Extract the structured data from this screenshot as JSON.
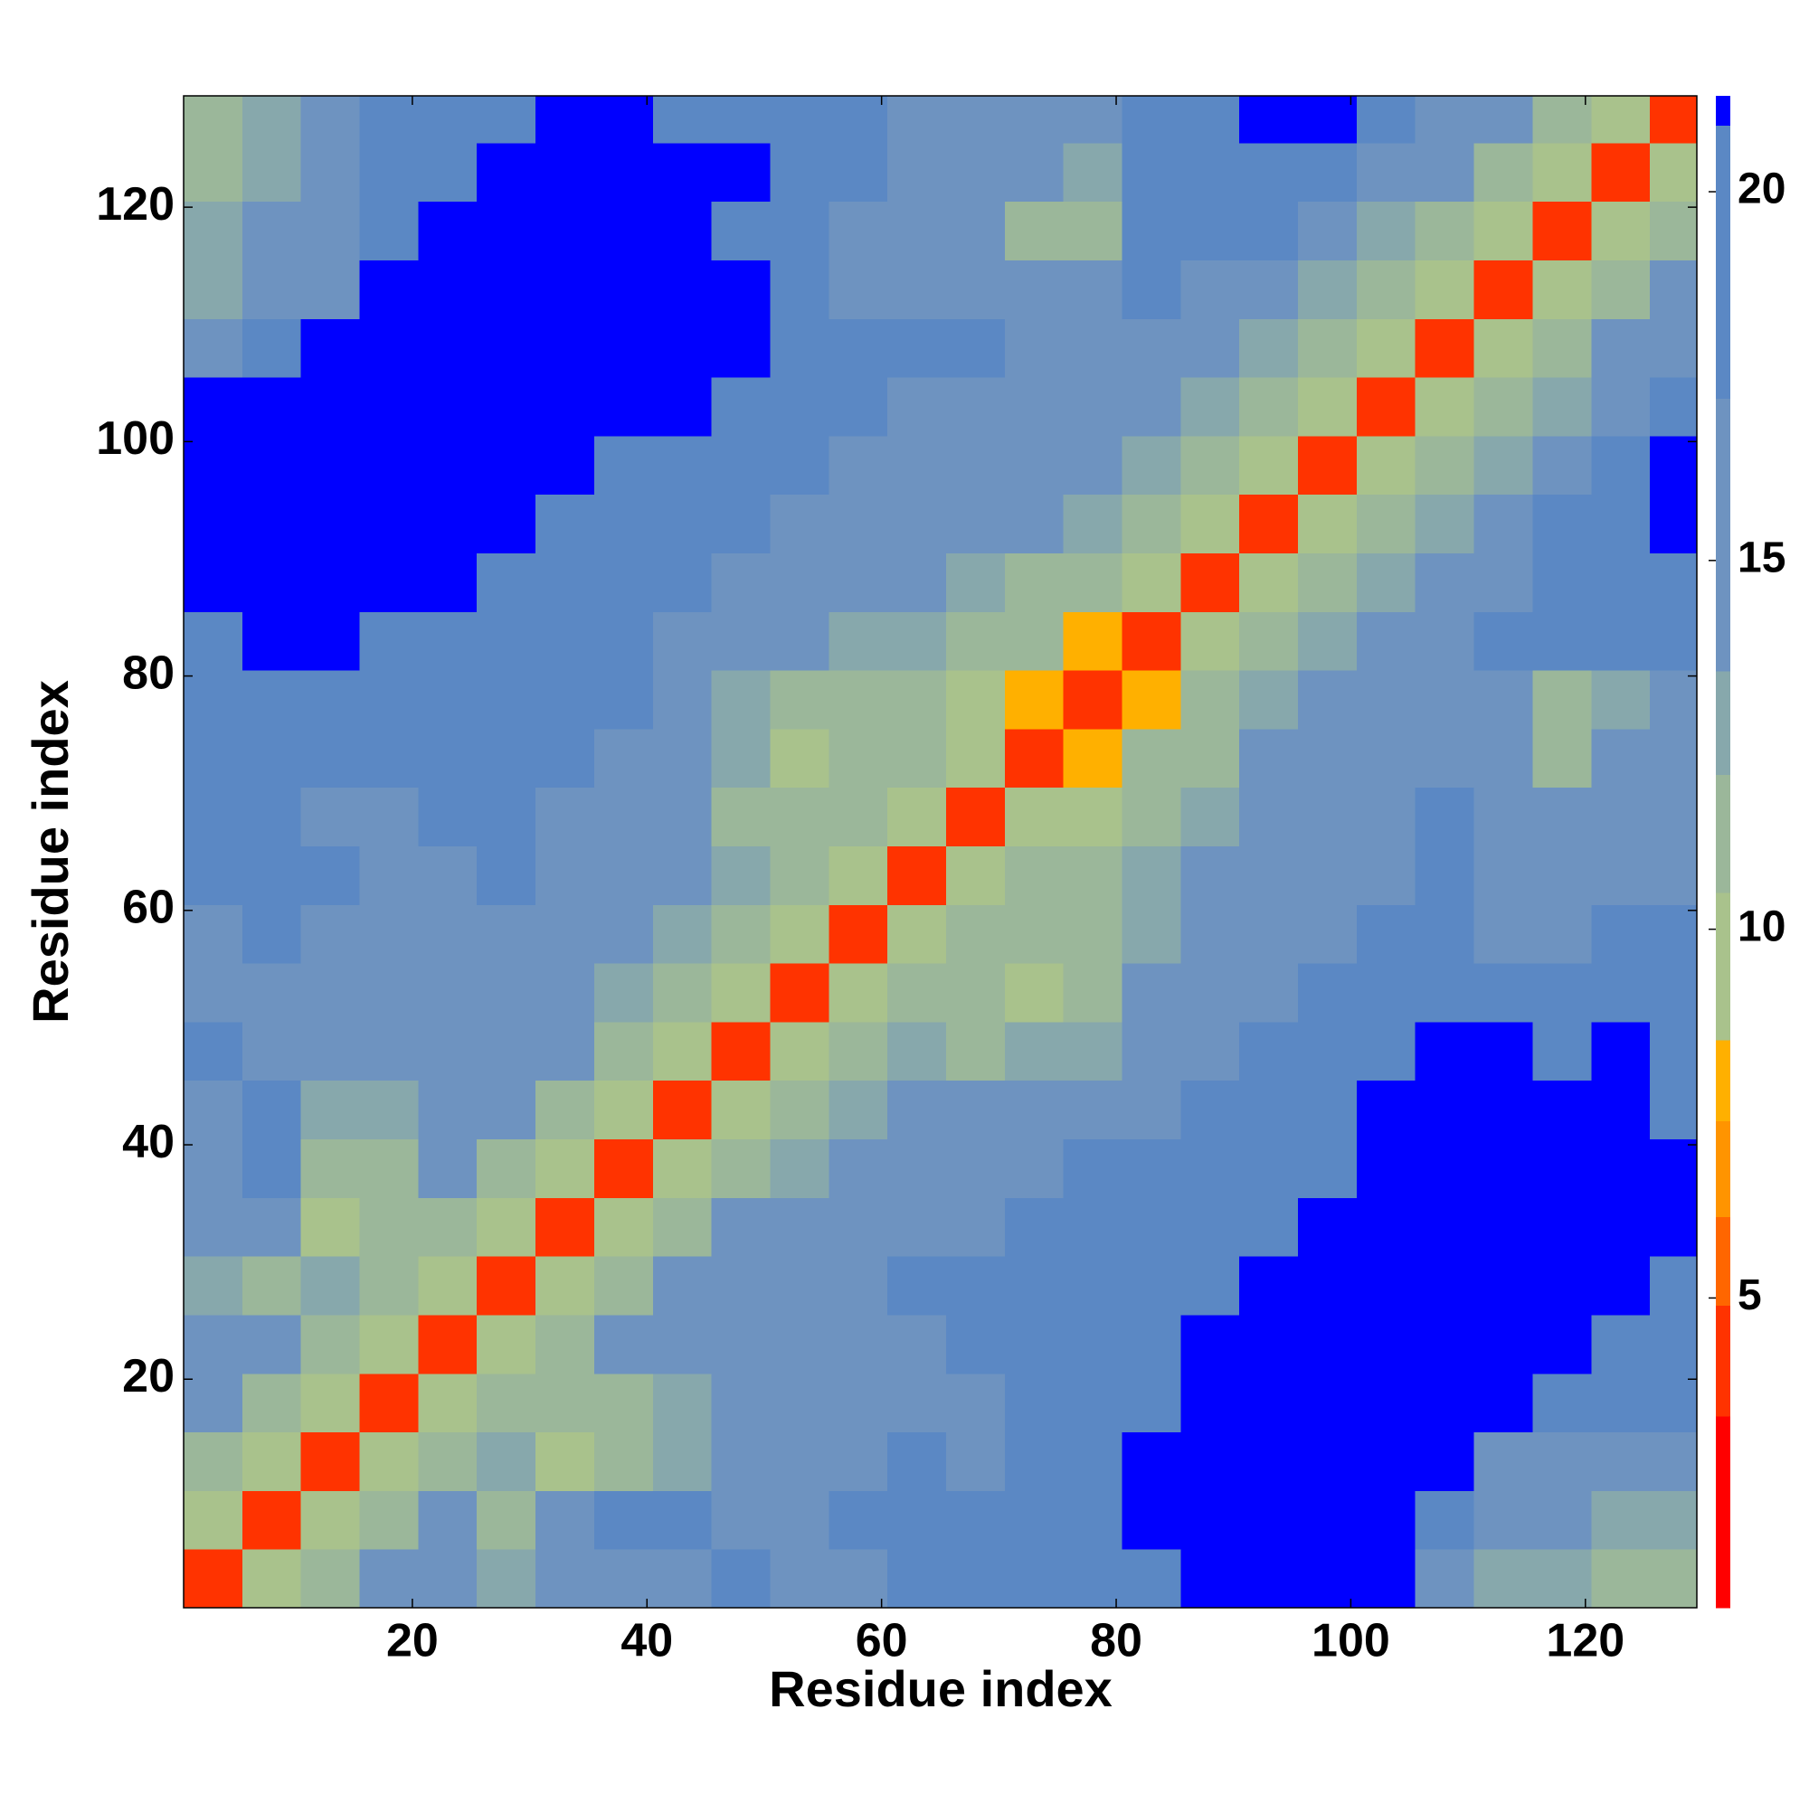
{
  "chart_data": {
    "type": "heatmap",
    "xlabel": "Residue index",
    "ylabel": "Residue index",
    "x_edges": [
      0.5,
      5.5,
      10.5,
      15.5,
      20.5,
      25.5,
      30.5,
      35.5,
      40.5,
      45.5,
      50.5,
      55.5,
      60.5,
      65.5,
      70.5,
      75.5,
      80.5,
      85.5,
      90.5,
      95.5,
      100.5,
      105.5,
      110.5,
      115.5,
      120.5,
      125.5,
      129.5
    ],
    "y_edges": [
      0.5,
      5.5,
      10.5,
      15.5,
      20.5,
      25.5,
      30.5,
      35.5,
      40.5,
      45.5,
      50.5,
      55.5,
      60.5,
      65.5,
      70.5,
      75.5,
      80.5,
      85.5,
      90.5,
      95.5,
      100.5,
      105.5,
      110.5,
      115.5,
      120.5,
      125.5,
      129.5
    ],
    "xlim": [
      0.5,
      129.5
    ],
    "ylim": [
      0.5,
      129.5
    ],
    "xticks": [
      20,
      40,
      60,
      80,
      100,
      120
    ],
    "yticks": [
      20,
      40,
      60,
      80,
      100,
      120
    ],
    "z": [
      [
        4,
        9,
        12,
        14,
        16,
        13,
        15,
        16,
        17,
        18,
        16,
        17,
        19,
        18,
        19,
        20,
        20,
        21,
        21,
        21,
        21,
        15,
        13,
        13,
        12,
        12
      ],
      [
        9,
        4,
        9,
        12,
        14,
        12,
        16,
        18,
        18,
        17,
        16,
        18,
        19,
        18,
        19,
        20,
        21,
        21,
        21,
        21,
        21,
        19,
        15,
        14,
        13,
        13
      ],
      [
        12,
        9,
        4,
        9,
        12,
        13,
        10,
        12,
        13,
        15,
        14,
        17,
        18,
        17,
        19,
        20,
        21,
        21,
        21,
        21,
        21,
        21,
        17,
        16,
        15,
        16
      ],
      [
        14,
        12,
        9,
        4,
        9,
        12,
        11,
        12,
        13,
        14,
        14,
        15,
        17,
        17,
        18,
        19,
        20,
        21,
        21,
        21,
        21,
        21,
        21,
        20,
        19,
        18
      ],
      [
        16,
        14,
        12,
        9,
        4,
        9,
        12,
        14,
        16,
        15,
        14,
        16,
        17,
        18,
        19,
        19,
        20,
        21,
        21,
        21,
        21,
        21,
        21,
        21,
        20,
        19
      ],
      [
        13,
        12,
        13,
        12,
        9,
        4,
        9,
        12,
        14,
        16,
        15,
        17,
        18,
        18,
        19,
        19,
        20,
        20,
        21,
        21,
        21,
        21,
        21,
        21,
        21,
        20
      ],
      [
        15,
        16,
        10,
        11,
        12,
        9,
        4,
        9,
        12,
        14,
        16,
        17,
        17,
        17,
        18,
        19,
        19,
        20,
        20,
        21,
        21,
        21,
        21,
        21,
        21,
        21
      ],
      [
        16,
        18,
        12,
        12,
        14,
        12,
        9,
        4,
        9,
        12,
        13,
        15,
        15,
        16,
        17,
        18,
        18,
        19,
        20,
        20,
        21,
        21,
        21,
        21,
        21,
        21
      ],
      [
        17,
        18,
        13,
        13,
        16,
        14,
        12,
        9,
        4,
        9,
        11,
        13,
        14,
        14,
        15,
        16,
        17,
        18,
        19,
        20,
        21,
        21,
        21,
        21,
        21,
        20
      ],
      [
        18,
        17,
        15,
        14,
        15,
        16,
        14,
        12,
        9,
        4,
        9,
        11,
        13,
        12,
        13,
        13,
        15,
        17,
        18,
        19,
        20,
        21,
        21,
        20,
        21,
        20
      ],
      [
        16,
        16,
        14,
        14,
        14,
        15,
        16,
        13,
        11,
        9,
        4,
        9,
        11,
        12,
        10,
        12,
        14,
        16,
        17,
        18,
        19,
        20,
        20,
        19,
        20,
        19
      ],
      [
        17,
        18,
        17,
        15,
        16,
        17,
        17,
        15,
        13,
        11,
        9,
        4,
        9,
        11,
        12,
        12,
        13,
        14,
        15,
        17,
        18,
        19,
        17,
        17,
        18,
        18
      ],
      [
        19,
        19,
        18,
        17,
        17,
        18,
        17,
        15,
        14,
        13,
        11,
        9,
        4,
        9,
        11,
        12,
        13,
        14,
        15,
        16,
        17,
        18,
        16,
        15,
        16,
        17
      ],
      [
        18,
        18,
        17,
        17,
        18,
        18,
        17,
        16,
        14,
        12,
        12,
        11,
        9,
        4,
        9,
        10,
        12,
        13,
        14,
        15,
        17,
        18,
        16,
        15,
        16,
        17
      ],
      [
        19,
        19,
        19,
        18,
        19,
        19,
        18,
        17,
        15,
        13,
        10,
        12,
        11,
        9,
        4,
        8,
        11,
        12,
        14,
        15,
        16,
        17,
        15,
        12,
        14,
        15
      ],
      [
        20,
        20,
        20,
        19,
        19,
        19,
        19,
        18,
        16,
        13,
        12,
        12,
        12,
        10,
        8,
        4,
        8,
        11,
        13,
        15,
        16,
        17,
        14,
        11,
        13,
        14
      ],
      [
        20,
        21,
        21,
        20,
        20,
        20,
        19,
        18,
        17,
        15,
        14,
        13,
        13,
        12,
        11,
        8,
        4,
        9,
        11,
        13,
        15,
        17,
        18,
        18,
        19,
        19
      ],
      [
        21,
        21,
        21,
        21,
        21,
        20,
        20,
        19,
        18,
        17,
        16,
        14,
        14,
        13,
        12,
        11,
        9,
        4,
        9,
        11,
        13,
        15,
        17,
        19,
        20,
        20
      ],
      [
        21,
        21,
        21,
        21,
        21,
        21,
        20,
        20,
        19,
        18,
        17,
        15,
        15,
        14,
        14,
        13,
        11,
        9,
        4,
        9,
        11,
        13,
        15,
        18,
        20,
        21
      ],
      [
        21,
        21,
        21,
        21,
        21,
        21,
        21,
        20,
        20,
        19,
        18,
        17,
        16,
        15,
        15,
        15,
        13,
        11,
        9,
        4,
        9,
        11,
        13,
        16,
        19,
        21
      ],
      [
        21,
        21,
        21,
        21,
        21,
        21,
        21,
        21,
        21,
        20,
        19,
        18,
        17,
        17,
        16,
        16,
        15,
        13,
        11,
        9,
        4,
        9,
        11,
        13,
        17,
        20
      ],
      [
        15,
        19,
        21,
        21,
        21,
        21,
        21,
        21,
        21,
        21,
        20,
        19,
        18,
        18,
        17,
        17,
        17,
        15,
        13,
        11,
        9,
        4,
        9,
        11,
        14,
        17
      ],
      [
        13,
        15,
        17,
        21,
        21,
        21,
        21,
        21,
        21,
        21,
        20,
        17,
        16,
        16,
        15,
        14,
        18,
        17,
        15,
        13,
        11,
        9,
        4,
        9,
        11,
        14
      ],
      [
        13,
        14,
        16,
        20,
        21,
        21,
        21,
        21,
        21,
        20,
        19,
        17,
        15,
        15,
        12,
        11,
        18,
        19,
        18,
        16,
        13,
        11,
        9,
        4,
        9,
        11
      ],
      [
        12,
        13,
        15,
        19,
        20,
        21,
        21,
        21,
        21,
        21,
        20,
        18,
        16,
        16,
        14,
        13,
        19,
        20,
        20,
        19,
        17,
        14,
        11,
        9,
        4,
        9
      ],
      [
        12,
        13,
        16,
        18,
        19,
        20,
        21,
        21,
        20,
        20,
        19,
        18,
        17,
        17,
        15,
        14,
        19,
        20,
        21,
        21,
        20,
        17,
        14,
        11,
        9,
        4
      ]
    ],
    "colorbar": {
      "lim": [
        0.8,
        21.3
      ],
      "ticks": [
        5,
        10,
        15,
        20
      ],
      "bounds": [
        0.8,
        3.4,
        4.9,
        6.1,
        7.4,
        8.5,
        10.5,
        12.1,
        13.5,
        17.2,
        20.9,
        21.3
      ],
      "colors": [
        "#ff0000",
        "#ff3300",
        "#ff6600",
        "#ff9400",
        "#ffb000",
        "#a9c28c",
        "#9bb79a",
        "#87a8ac",
        "#6e93c0",
        "#5b88c4",
        "#0000ff"
      ]
    }
  }
}
